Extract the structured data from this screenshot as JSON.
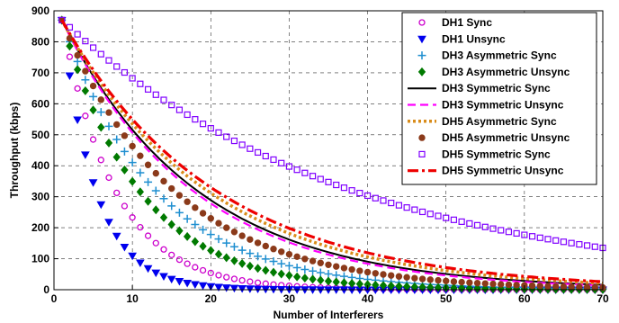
{
  "chart_data": {
    "type": "line",
    "title": "",
    "xlabel": "Number of Interferers",
    "ylabel": "Throughput (kbps)",
    "xlim": [
      0,
      70
    ],
    "ylim": [
      0,
      900
    ],
    "xticks": [
      0,
      10,
      20,
      30,
      40,
      50,
      60,
      70
    ],
    "yticks": [
      0,
      100,
      200,
      300,
      400,
      500,
      600,
      700,
      800,
      900
    ],
    "grid": true,
    "legend_position": "top-right",
    "x_range": [
      1,
      70
    ],
    "series": [
      {
        "name": "DH1 Sync",
        "marker": "circle-open",
        "color": "#cc00cc",
        "start": 870,
        "decay": 0.1463,
        "anchors": [
          [
            1,
            870
          ],
          [
            2,
            757
          ],
          [
            3,
            657
          ],
          [
            5,
            500
          ],
          [
            10,
            250
          ],
          [
            20,
            60
          ],
          [
            30,
            15
          ],
          [
            40,
            4
          ],
          [
            50,
            1
          ],
          [
            70,
            0
          ]
        ]
      },
      {
        "name": "DH1 Unsync",
        "marker": "triangle-down",
        "color": "#0000ee",
        "start": 870,
        "decay": 0.2303,
        "anchors": [
          [
            1,
            870
          ],
          [
            2,
            690
          ],
          [
            3,
            550
          ],
          [
            5,
            345
          ],
          [
            10,
            110
          ],
          [
            20,
            10
          ],
          [
            30,
            1
          ],
          [
            40,
            0
          ],
          [
            70,
            0
          ]
        ]
      },
      {
        "name": "DH3 Asymmetric Sync",
        "marker": "plus",
        "color": "#1f8fd0",
        "start": 870,
        "decay": 0.0835,
        "anchors": [
          [
            1,
            870
          ],
          [
            5,
            620
          ],
          [
            10,
            410
          ],
          [
            20,
            180
          ],
          [
            30,
            80
          ],
          [
            40,
            35
          ],
          [
            50,
            15
          ],
          [
            60,
            7
          ],
          [
            70,
            3
          ]
        ]
      },
      {
        "name": "DH3 Asymmetric Unsync",
        "marker": "diamond",
        "color": "#007a00",
        "start": 870,
        "decay": 0.1014,
        "anchors": [
          [
            1,
            870
          ],
          [
            5,
            580
          ],
          [
            10,
            350
          ],
          [
            20,
            130
          ],
          [
            30,
            47
          ],
          [
            40,
            17
          ],
          [
            50,
            6
          ],
          [
            60,
            2
          ],
          [
            70,
            1
          ]
        ]
      },
      {
        "name": "DH3 Symmetric Sync",
        "line": "solid",
        "color": "#000000",
        "start": 870,
        "decay": 0.058,
        "anchors": [
          [
            1,
            870
          ],
          [
            5,
            690
          ],
          [
            10,
            515
          ],
          [
            20,
            290
          ],
          [
            30,
            165
          ],
          [
            40,
            95
          ],
          [
            50,
            53
          ],
          [
            60,
            30
          ],
          [
            70,
            17
          ]
        ]
      },
      {
        "name": "DH3 Symmetric Unsync",
        "line": "dashed",
        "color": "#ff00ff",
        "start": 870,
        "decay": 0.06,
        "anchors": [
          [
            1,
            870
          ],
          [
            5,
            680
          ],
          [
            10,
            505
          ],
          [
            20,
            275
          ],
          [
            30,
            150
          ],
          [
            40,
            82
          ],
          [
            50,
            45
          ],
          [
            60,
            25
          ],
          [
            70,
            14
          ]
        ]
      },
      {
        "name": "DH5 Asymmetric Sync",
        "line": "dotted",
        "color": "#d98c1a",
        "start": 870,
        "decay": 0.054,
        "anchors": [
          [
            1,
            870
          ],
          [
            5,
            700
          ],
          [
            10,
            535
          ],
          [
            20,
            310
          ],
          [
            30,
            180
          ],
          [
            40,
            105
          ],
          [
            50,
            61
          ],
          [
            60,
            35
          ],
          [
            70,
            21
          ]
        ]
      },
      {
        "name": "DH5 Asymmetric Unsync",
        "marker": "circle-filled",
        "color": "#8b3a1a",
        "start": 870,
        "decay": 0.07,
        "anchors": [
          [
            1,
            870
          ],
          [
            5,
            660
          ],
          [
            10,
            465
          ],
          [
            20,
            230
          ],
          [
            30,
            115
          ],
          [
            40,
            57
          ],
          [
            50,
            28
          ],
          [
            60,
            14
          ],
          [
            70,
            7
          ]
        ]
      },
      {
        "name": "DH5 Symmetric Sync",
        "marker": "square-open",
        "color": "#8000ff",
        "start": 870,
        "decay": 0.027,
        "anchors": [
          [
            1,
            870
          ],
          [
            5,
            780
          ],
          [
            10,
            680
          ],
          [
            20,
            520
          ],
          [
            30,
            400
          ],
          [
            40,
            305
          ],
          [
            50,
            235
          ],
          [
            60,
            180
          ],
          [
            70,
            137
          ]
        ]
      },
      {
        "name": "DH5 Symmetric Unsync",
        "line": "dashdot",
        "color": "#ee0000",
        "start": 870,
        "decay": 0.051,
        "anchors": [
          [
            1,
            870
          ],
          [
            5,
            710
          ],
          [
            10,
            550
          ],
          [
            20,
            330
          ],
          [
            30,
            200
          ],
          [
            40,
            120
          ],
          [
            50,
            72
          ],
          [
            60,
            43
          ],
          [
            70,
            26
          ]
        ]
      }
    ]
  }
}
